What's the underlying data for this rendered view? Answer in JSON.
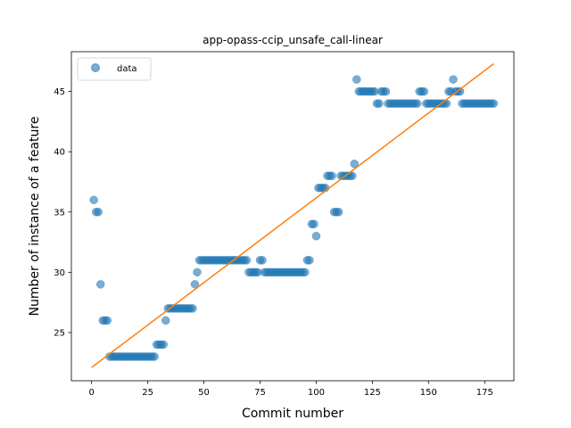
{
  "chart_data": {
    "type": "scatter",
    "title": "app-opass-ccip_unsafe_call-linear",
    "xlabel": "Commit number",
    "ylabel": "Number of instance of a feature",
    "xlim": [
      -9,
      188
    ],
    "ylim": [
      21.0,
      48.3
    ],
    "xticks": [
      0,
      25,
      50,
      75,
      100,
      125,
      150,
      175
    ],
    "yticks": [
      25,
      30,
      35,
      40,
      45
    ],
    "legend": {
      "position": "top-left",
      "entries": [
        "data"
      ]
    },
    "colors": {
      "data": "#1f77b4",
      "fit": "#ff7f0e"
    },
    "series": [
      {
        "name": "data",
        "kind": "points",
        "points": [
          [
            1,
            36
          ],
          [
            2,
            35
          ],
          [
            3,
            35
          ],
          [
            4,
            29
          ],
          [
            5,
            26
          ],
          [
            6,
            26
          ],
          [
            7,
            26
          ],
          [
            8,
            23
          ],
          [
            9,
            23
          ],
          [
            10,
            23
          ],
          [
            11,
            23
          ],
          [
            12,
            23
          ],
          [
            13,
            23
          ],
          [
            14,
            23
          ],
          [
            15,
            23
          ],
          [
            16,
            23
          ],
          [
            17,
            23
          ],
          [
            18,
            23
          ],
          [
            19,
            23
          ],
          [
            20,
            23
          ],
          [
            21,
            23
          ],
          [
            22,
            23
          ],
          [
            23,
            23
          ],
          [
            24,
            23
          ],
          [
            25,
            23
          ],
          [
            26,
            23
          ],
          [
            27,
            23
          ],
          [
            28,
            23
          ],
          [
            29,
            24
          ],
          [
            30,
            24
          ],
          [
            31,
            24
          ],
          [
            32,
            24
          ],
          [
            33,
            26
          ],
          [
            34,
            27
          ],
          [
            35,
            27
          ],
          [
            36,
            27
          ],
          [
            37,
            27
          ],
          [
            38,
            27
          ],
          [
            39,
            27
          ],
          [
            40,
            27
          ],
          [
            41,
            27
          ],
          [
            42,
            27
          ],
          [
            43,
            27
          ],
          [
            44,
            27
          ],
          [
            45,
            27
          ],
          [
            46,
            29
          ],
          [
            47,
            30
          ],
          [
            48,
            31
          ],
          [
            49,
            31
          ],
          [
            50,
            31
          ],
          [
            51,
            31
          ],
          [
            52,
            31
          ],
          [
            53,
            31
          ],
          [
            54,
            31
          ],
          [
            55,
            31
          ],
          [
            56,
            31
          ],
          [
            57,
            31
          ],
          [
            58,
            31
          ],
          [
            59,
            31
          ],
          [
            60,
            31
          ],
          [
            61,
            31
          ],
          [
            62,
            31
          ],
          [
            63,
            31
          ],
          [
            64,
            31
          ],
          [
            65,
            31
          ],
          [
            66,
            31
          ],
          [
            67,
            31
          ],
          [
            68,
            31
          ],
          [
            69,
            31
          ],
          [
            70,
            30
          ],
          [
            71,
            30
          ],
          [
            72,
            30
          ],
          [
            73,
            30
          ],
          [
            74,
            30
          ],
          [
            75,
            31
          ],
          [
            76,
            31
          ],
          [
            77,
            30
          ],
          [
            78,
            30
          ],
          [
            79,
            30
          ],
          [
            80,
            30
          ],
          [
            81,
            30
          ],
          [
            82,
            30
          ],
          [
            83,
            30
          ],
          [
            84,
            30
          ],
          [
            85,
            30
          ],
          [
            86,
            30
          ],
          [
            87,
            30
          ],
          [
            88,
            30
          ],
          [
            89,
            30
          ],
          [
            90,
            30
          ],
          [
            91,
            30
          ],
          [
            92,
            30
          ],
          [
            93,
            30
          ],
          [
            94,
            30
          ],
          [
            95,
            30
          ],
          [
            96,
            31
          ],
          [
            97,
            31
          ],
          [
            98,
            34
          ],
          [
            99,
            34
          ],
          [
            100,
            33
          ],
          [
            101,
            37
          ],
          [
            102,
            37
          ],
          [
            103,
            37
          ],
          [
            104,
            37
          ],
          [
            105,
            38
          ],
          [
            106,
            38
          ],
          [
            107,
            38
          ],
          [
            108,
            35
          ],
          [
            109,
            35
          ],
          [
            110,
            35
          ],
          [
            111,
            38
          ],
          [
            112,
            38
          ],
          [
            113,
            38
          ],
          [
            114,
            38
          ],
          [
            115,
            38
          ],
          [
            116,
            38
          ],
          [
            117,
            39
          ],
          [
            118,
            46
          ],
          [
            119,
            45
          ],
          [
            120,
            45
          ],
          [
            121,
            45
          ],
          [
            122,
            45
          ],
          [
            123,
            45
          ],
          [
            124,
            45
          ],
          [
            125,
            45
          ],
          [
            126,
            45
          ],
          [
            127,
            44
          ],
          [
            128,
            44
          ],
          [
            129,
            45
          ],
          [
            130,
            45
          ],
          [
            131,
            45
          ],
          [
            132,
            44
          ],
          [
            133,
            44
          ],
          [
            134,
            44
          ],
          [
            135,
            44
          ],
          [
            136,
            44
          ],
          [
            137,
            44
          ],
          [
            138,
            44
          ],
          [
            139,
            44
          ],
          [
            140,
            44
          ],
          [
            141,
            44
          ],
          [
            142,
            44
          ],
          [
            143,
            44
          ],
          [
            144,
            44
          ],
          [
            145,
            44
          ],
          [
            146,
            45
          ],
          [
            147,
            45
          ],
          [
            148,
            45
          ],
          [
            149,
            44
          ],
          [
            150,
            44
          ],
          [
            151,
            44
          ],
          [
            152,
            44
          ],
          [
            153,
            44
          ],
          [
            154,
            44
          ],
          [
            155,
            44
          ],
          [
            156,
            44
          ],
          [
            157,
            44
          ],
          [
            158,
            44
          ],
          [
            159,
            45
          ],
          [
            160,
            45
          ],
          [
            161,
            46
          ],
          [
            162,
            45
          ],
          [
            163,
            45
          ],
          [
            164,
            45
          ],
          [
            165,
            44
          ],
          [
            166,
            44
          ],
          [
            167,
            44
          ],
          [
            168,
            44
          ],
          [
            169,
            44
          ],
          [
            170,
            44
          ],
          [
            171,
            44
          ],
          [
            172,
            44
          ],
          [
            173,
            44
          ],
          [
            174,
            44
          ],
          [
            175,
            44
          ],
          [
            176,
            44
          ],
          [
            177,
            44
          ],
          [
            178,
            44
          ],
          [
            179,
            44
          ]
        ]
      },
      {
        "kind": "line",
        "points": [
          [
            0,
            22.1
          ],
          [
            179,
            47.3
          ]
        ]
      }
    ]
  }
}
